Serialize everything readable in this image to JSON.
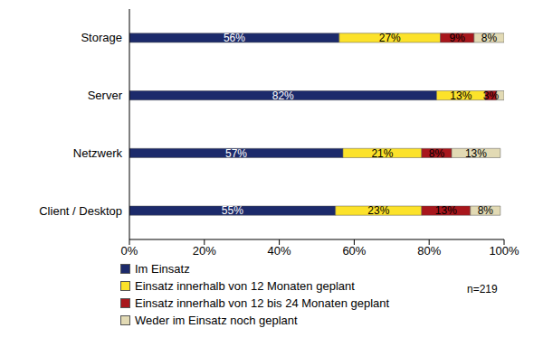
{
  "chart_data": {
    "type": "bar",
    "orientation": "horizontal",
    "stacked": true,
    "data_labels": true,
    "grid": false,
    "legend": "bottom-left",
    "categories": [
      "Storage",
      "Server",
      "Netzwerk",
      "Client / Desktop"
    ],
    "series": [
      {
        "name": "Im Einsatz",
        "color": "#1c2a6b",
        "values": [
          56,
          82,
          57,
          55
        ],
        "value_labels": [
          "56%",
          "82%",
          "57%",
          "55%"
        ]
      },
      {
        "name": "Einsatz innerhalb  von 12 Monaten geplant",
        "color": "#fce22a",
        "values": [
          27,
          13,
          21,
          23
        ],
        "value_labels": [
          "27%",
          "13%",
          "21%",
          "23%"
        ]
      },
      {
        "name": "Einsatz innerhalb  von 12 bis 24 Monaten geplant",
        "color": "#a8161c",
        "values": [
          9,
          3,
          8,
          13
        ],
        "value_labels": [
          "9%",
          "3%",
          "8%",
          "13%"
        ]
      },
      {
        "name": "Weder im Einsatz noch geplant",
        "color": "#e2dab4",
        "values": [
          8,
          2,
          13,
          8
        ],
        "value_labels": [
          "8%",
          null,
          "13%",
          "8%"
        ]
      }
    ],
    "xlim": [
      0,
      100
    ],
    "xticks": [
      {
        "value": 0,
        "label": "0%"
      },
      {
        "value": 20,
        "label": "20%"
      },
      {
        "value": 40,
        "label": "40%"
      },
      {
        "value": 60,
        "label": "60%"
      },
      {
        "value": 80,
        "label": "80%"
      },
      {
        "value": 100,
        "label": "100%"
      }
    ],
    "annotations": [
      "n=219"
    ]
  }
}
